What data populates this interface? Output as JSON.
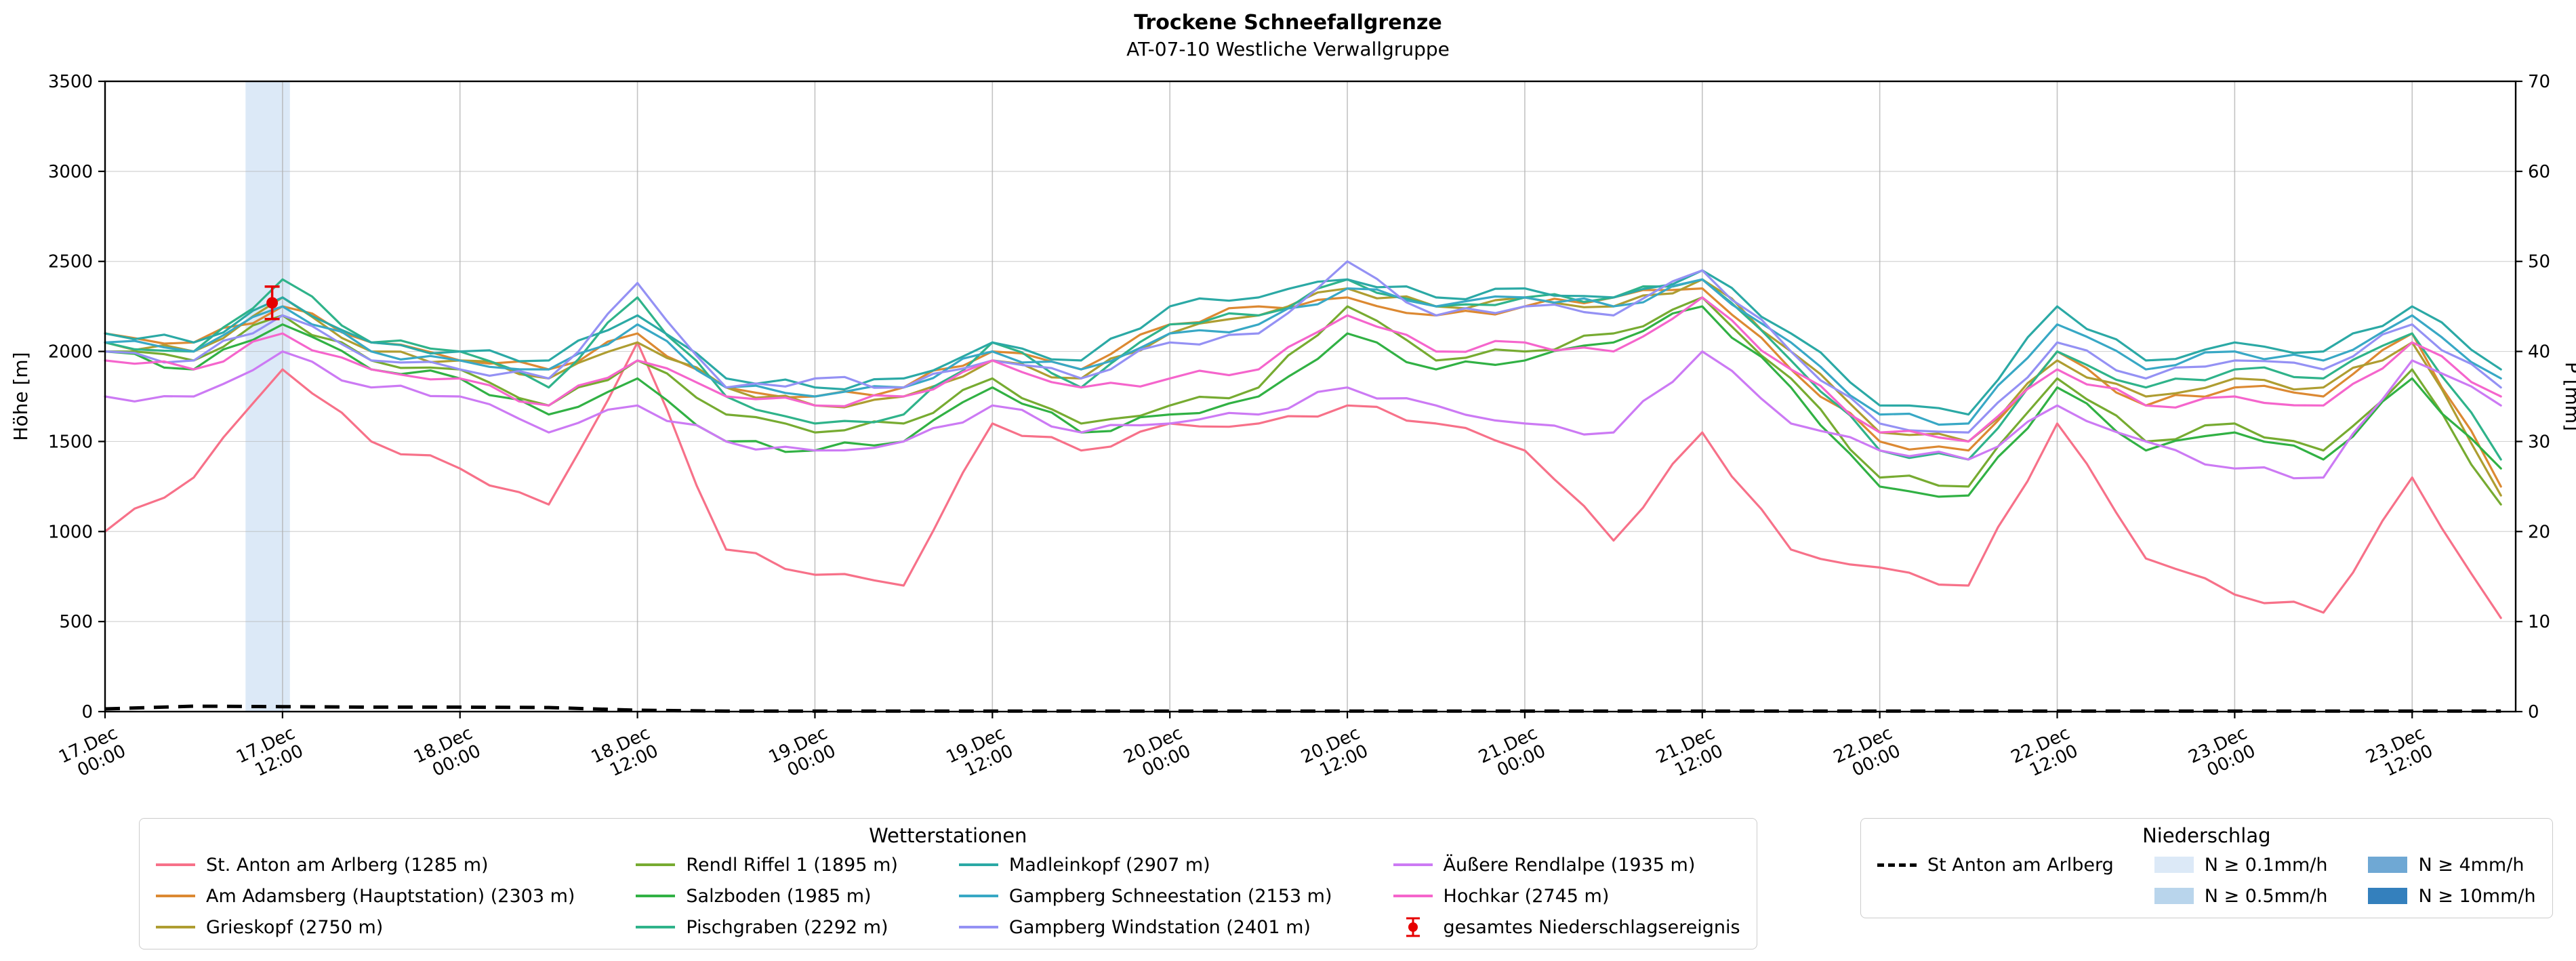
{
  "title": "Trockene Schneefallgrenze",
  "subtitle": "AT-07-10 Westliche Verwallgruppe",
  "axes": {
    "ylabel_left": "Höhe [m]",
    "ylabel_right": "P [mm]"
  },
  "legend_stations": {
    "title": "Wetterstationen",
    "event_item": {
      "label": "gesamtes Niederschlagsereignis",
      "color": "#e60000"
    }
  },
  "legend_precip": {
    "title": "Niederschlag",
    "line_item": {
      "label": "St Anton am Arlberg",
      "color": "#000000"
    },
    "patch_items": [
      {
        "label": "N ≥ 0.1mm/h",
        "color": "#dce9f7"
      },
      {
        "label": "N ≥ 0.5mm/h",
        "color": "#b9d5ec"
      },
      {
        "label": "N ≥ 4mm/h",
        "color": "#6fa8d4"
      },
      {
        "label": "N ≥ 10mm/h",
        "color": "#3480bd"
      }
    ]
  },
  "chart_data": {
    "type": "line",
    "title": "Trockene Schneefallgrenze",
    "subtitle": "AT-07-10 Westliche Verwallgruppe",
    "xlabel": "",
    "ylabel_left": "Höhe [m]",
    "ylabel_right": "P [mm]",
    "xlim": [
      0,
      163
    ],
    "ylim_left": [
      0,
      3500
    ],
    "ylim_right": [
      0,
      70
    ],
    "grid": true,
    "left_ticks": [
      0,
      500,
      1000,
      1500,
      2000,
      2500,
      3000,
      3500
    ],
    "right_ticks": [
      0,
      10,
      20,
      30,
      40,
      50,
      60,
      70
    ],
    "x_ticks": [
      {
        "hour": 0,
        "line1": "17.Dec",
        "line2": "00:00"
      },
      {
        "hour": 12,
        "line1": "17.Dec",
        "line2": "12:00"
      },
      {
        "hour": 24,
        "line1": "18.Dec",
        "line2": "00:00"
      },
      {
        "hour": 36,
        "line1": "18.Dec",
        "line2": "12:00"
      },
      {
        "hour": 48,
        "line1": "19.Dec",
        "line2": "00:00"
      },
      {
        "hour": 60,
        "line1": "19.Dec",
        "line2": "12:00"
      },
      {
        "hour": 72,
        "line1": "20.Dec",
        "line2": "00:00"
      },
      {
        "hour": 84,
        "line1": "20.Dec",
        "line2": "12:00"
      },
      {
        "hour": 96,
        "line1": "21.Dec",
        "line2": "00:00"
      },
      {
        "hour": 108,
        "line1": "21.Dec",
        "line2": "12:00"
      },
      {
        "hour": 120,
        "line1": "22.Dec",
        "line2": "00:00"
      },
      {
        "hour": 132,
        "line1": "22.Dec",
        "line2": "12:00"
      },
      {
        "hour": 144,
        "line1": "23.Dec",
        "line2": "00:00"
      },
      {
        "hour": 156,
        "line1": "23.Dec",
        "line2": "12:00"
      }
    ],
    "x_hours": [
      0,
      6,
      12,
      18,
      24,
      30,
      36,
      42,
      48,
      54,
      60,
      66,
      72,
      78,
      84,
      90,
      96,
      102,
      108,
      114,
      120,
      126,
      132,
      138,
      144,
      150,
      156,
      162
    ],
    "series": [
      {
        "name": "St. Anton am Arlberg (1285 m)",
        "slug": "st-anton",
        "color": "#f77189",
        "values": [
          1000,
          1300,
          1900,
          1500,
          1350,
          1150,
          2050,
          900,
          760,
          700,
          1600,
          1450,
          1600,
          1600,
          1700,
          1600,
          1450,
          950,
          1550,
          900,
          800,
          700,
          1600,
          850,
          650,
          550,
          1300,
          520
        ]
      },
      {
        "name": "Am Adamsberg (Hauptstation) (2303 m)",
        "slug": "adamsberg",
        "color": "#dc8932",
        "values": [
          2100,
          2050,
          2250,
          2050,
          1950,
          1900,
          2100,
          1800,
          1750,
          1800,
          2000,
          1900,
          2150,
          2250,
          2300,
          2200,
          2250,
          2300,
          2350,
          1900,
          1500,
          1450,
          2000,
          1700,
          1800,
          1750,
          2100,
          1250
        ]
      },
      {
        "name": "Grieskopf (2750 m)",
        "slug": "grieskopf",
        "color": "#ae9d31",
        "values": [
          2050,
          2000,
          2300,
          2000,
          1950,
          1850,
          2050,
          1800,
          1700,
          1750,
          1950,
          1850,
          2100,
          2200,
          2350,
          2250,
          2300,
          2250,
          2400,
          2000,
          1550,
          1500,
          1950,
          1750,
          1850,
          1800,
          2050,
          1200
        ]
      },
      {
        "name": "Rendl Riffel 1 (1895 m)",
        "slug": "rendl-riffel",
        "color": "#77ab31",
        "values": [
          2000,
          1950,
          2200,
          1950,
          1900,
          1700,
          1950,
          1650,
          1550,
          1600,
          1850,
          1600,
          1700,
          1800,
          2250,
          1950,
          2000,
          2100,
          2300,
          1850,
          1300,
          1250,
          1850,
          1500,
          1600,
          1450,
          1900,
          1150
        ]
      },
      {
        "name": "Salzboden (1985 m)",
        "slug": "salzboden",
        "color": "#31b144",
        "values": [
          2000,
          1900,
          2150,
          1900,
          1850,
          1650,
          1850,
          1500,
          1450,
          1500,
          1800,
          1550,
          1650,
          1750,
          2100,
          1900,
          1950,
          2050,
          2250,
          1800,
          1250,
          1200,
          1800,
          1450,
          1550,
          1400,
          1850,
          1350
        ]
      },
      {
        "name": "Pischgraben (2292 m)",
        "slug": "pischgraben",
        "color": "#2fb38a",
        "values": [
          2050,
          2000,
          2400,
          2050,
          2000,
          1800,
          2300,
          1750,
          1600,
          1650,
          2050,
          1800,
          2150,
          2200,
          2400,
          2250,
          2300,
          2300,
          2400,
          1950,
          1450,
          1400,
          2000,
          1800,
          1900,
          1850,
          2100,
          1400
        ]
      },
      {
        "name": "Madleinkopf (2907 m)",
        "slug": "madleinkopf",
        "color": "#2ba9a5",
        "values": [
          2100,
          2050,
          2300,
          2050,
          2000,
          1950,
          2200,
          1850,
          1800,
          1850,
          2050,
          1950,
          2250,
          2300,
          2400,
          2300,
          2350,
          2300,
          2450,
          2100,
          1700,
          1650,
          2250,
          1950,
          2050,
          2000,
          2250,
          1900
        ]
      },
      {
        "name": "Gampberg Schneestation (2153 m)",
        "slug": "gampberg-schnee",
        "color": "#38a8c5",
        "values": [
          2050,
          2000,
          2250,
          2000,
          1950,
          1900,
          2150,
          1800,
          1750,
          1800,
          2000,
          1900,
          2100,
          2150,
          2350,
          2250,
          2300,
          2250,
          2400,
          2050,
          1650,
          1600,
          2150,
          1900,
          2000,
          1950,
          2200,
          1850
        ]
      },
      {
        "name": "Gampberg Windstation (2401 m)",
        "slug": "gampberg-wind",
        "color": "#9491f4",
        "values": [
          2000,
          1950,
          2200,
          1950,
          1900,
          1850,
          2380,
          1800,
          1850,
          1800,
          1950,
          1850,
          2050,
          2100,
          2500,
          2200,
          2250,
          2200,
          2450,
          2000,
          1600,
          1550,
          2050,
          1850,
          1950,
          1900,
          2150,
          1800
        ]
      },
      {
        "name": "Äußere Rendlalpe (1935 m)",
        "slug": "rendlalpe",
        "color": "#cc7af4",
        "values": [
          1750,
          1750,
          2000,
          1800,
          1750,
          1550,
          1700,
          1500,
          1450,
          1500,
          1700,
          1550,
          1600,
          1650,
          1800,
          1700,
          1600,
          1550,
          2000,
          1600,
          1450,
          1400,
          1700,
          1500,
          1350,
          1300,
          1950,
          1700
        ]
      },
      {
        "name": "Hochkar (2745 m)",
        "slug": "hochkar",
        "color": "#f565cc",
        "values": [
          1950,
          1900,
          2100,
          1900,
          1850,
          1700,
          1950,
          1750,
          1700,
          1750,
          1950,
          1800,
          1850,
          1900,
          2200,
          2000,
          2050,
          2000,
          2300,
          1900,
          1550,
          1500,
          1900,
          1700,
          1750,
          1700,
          2050,
          1750
        ]
      }
    ],
    "precip_line": {
      "name": "St Anton am Arlberg",
      "color": "#000000",
      "style": "dashed",
      "axis": "right",
      "values_mm": [
        0.3,
        0.6,
        0.55,
        0.5,
        0.5,
        0.45,
        0.15,
        0.05,
        0.05,
        0.05,
        0.05,
        0.05,
        0.05,
        0.05,
        0.05,
        0.05,
        0.05,
        0.05,
        0.05,
        0.05,
        0.05,
        0.05,
        0.05,
        0.05,
        0.05,
        0.05,
        0.05,
        0.05
      ]
    },
    "precip_bands": [
      {
        "start_hour": 9.5,
        "end_hour": 12.5,
        "level": "N ≥ 0.1mm/h",
        "color": "#dce9f7"
      }
    ],
    "event_marker": {
      "label": "gesamtes Niederschlagsereignis",
      "hour": 11.3,
      "value": 2270,
      "error": 90,
      "color": "#e60000"
    },
    "legend_position": "bottom"
  }
}
